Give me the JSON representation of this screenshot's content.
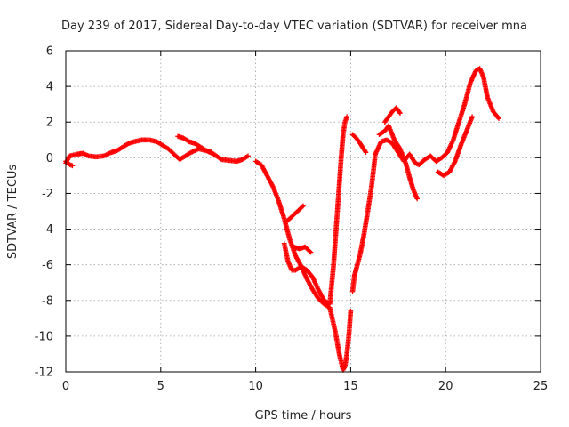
{
  "chart_data": {
    "type": "scatter",
    "title": "Day 239 of 2017, Sidereal Day-to-day VTEC variation (SDTVAR) for receiver mna",
    "xlabel": "GPS time / hours",
    "ylabel": "SDTVAR / TECUs",
    "xlim": [
      0,
      25
    ],
    "ylim": [
      -12,
      6
    ],
    "xticks": [
      0,
      5,
      10,
      15,
      20,
      25
    ],
    "yticks": [
      -12,
      -10,
      -8,
      -6,
      -4,
      -2,
      0,
      2,
      4,
      6
    ],
    "grid": true,
    "marker": "plus",
    "color": "#ff0000",
    "series": [
      {
        "x": [
          0.0,
          0.2,
          0.4,
          0.6,
          0.9,
          1.2,
          1.6,
          2.0,
          2.4,
          2.7,
          3.0,
          3.3,
          3.6,
          4.0,
          4.4,
          4.8,
          5.1,
          5.4,
          5.7,
          6.0,
          6.3,
          6.6,
          7.0,
          7.4,
          7.8,
          8.2,
          8.6,
          9.0,
          9.3,
          9.6
        ],
        "y": [
          -0.3,
          0.1,
          0.15,
          0.2,
          0.25,
          0.1,
          0.05,
          0.1,
          0.3,
          0.4,
          0.6,
          0.8,
          0.9,
          1.0,
          1.0,
          0.9,
          0.7,
          0.5,
          0.2,
          -0.1,
          0.1,
          0.3,
          0.5,
          0.4,
          0.2,
          -0.1,
          -0.15,
          -0.2,
          -0.1,
          0.1
        ]
      },
      {
        "x": [
          5.9,
          6.2,
          6.5,
          6.8,
          7.1,
          7.4,
          7.7
        ],
        "y": [
          1.2,
          1.1,
          0.9,
          0.8,
          0.6,
          0.4,
          0.3
        ]
      },
      {
        "x": [
          0.0,
          0.15,
          0.35
        ],
        "y": [
          -0.2,
          -0.35,
          -0.45
        ]
      },
      {
        "x": [
          10.0,
          10.3,
          10.6,
          10.9,
          11.2,
          11.5,
          11.8,
          12.1,
          12.4,
          12.7,
          13.0,
          13.3,
          13.6,
          13.9,
          14.2,
          14.4,
          14.6,
          14.7,
          14.8,
          14.9,
          15.0
        ],
        "y": [
          -0.2,
          -0.4,
          -1.0,
          -1.6,
          -2.4,
          -3.4,
          -4.6,
          -5.5,
          -6.1,
          -6.8,
          -7.4,
          -7.9,
          -8.2,
          -8.4,
          -9.8,
          -11.0,
          -11.9,
          -11.7,
          -11.0,
          -10.0,
          -8.6
        ]
      },
      {
        "x": [
          15.1,
          15.2,
          15.3,
          15.5,
          15.7,
          15.9,
          16.1,
          16.3,
          16.6,
          16.9,
          17.2,
          17.5,
          17.8,
          18.1,
          18.4,
          18.6,
          18.9,
          19.2,
          19.5,
          19.8,
          20.1,
          20.4,
          20.7,
          21.0,
          21.3,
          21.6,
          21.8,
          22.0,
          22.2,
          22.5,
          22.8
        ],
        "y": [
          -7.5,
          -6.6,
          -6.2,
          -5.4,
          -4.3,
          -3.0,
          -1.6,
          0.2,
          0.9,
          1.0,
          0.8,
          0.3,
          -0.2,
          0.2,
          -0.3,
          -0.4,
          -0.1,
          0.1,
          -0.2,
          0.0,
          0.3,
          1.0,
          2.0,
          3.0,
          4.2,
          4.9,
          5.0,
          4.5,
          3.4,
          2.6,
          2.2
        ]
      },
      {
        "x": [
          11.5,
          11.7,
          11.9,
          12.1,
          12.4,
          12.7,
          13.0,
          13.3,
          13.6,
          13.9,
          14.1,
          14.3,
          14.5,
          14.6,
          14.7,
          14.8
        ],
        "y": [
          -4.8,
          -5.8,
          -6.3,
          -6.3,
          -6.1,
          -6.3,
          -6.7,
          -7.4,
          -8.0,
          -8.2,
          -6.0,
          -3.0,
          0.0,
          1.3,
          2.0,
          2.3
        ]
      },
      {
        "x": [
          11.6,
          11.9,
          12.2,
          12.5
        ],
        "y": [
          -3.6,
          -3.3,
          -3.0,
          -2.7
        ]
      },
      {
        "x": [
          12.0,
          12.3,
          12.6,
          12.9
        ],
        "y": [
          -5.0,
          -5.1,
          -5.0,
          -5.3
        ]
      },
      {
        "x": [
          15.1,
          15.3,
          15.5,
          15.8
        ],
        "y": [
          1.3,
          1.1,
          0.8,
          0.3
        ]
      },
      {
        "x": [
          16.5,
          16.8,
          17.0,
          17.3,
          17.6,
          17.9,
          18.1,
          18.3,
          18.5
        ],
        "y": [
          1.3,
          1.5,
          1.8,
          1.0,
          0.5,
          -0.3,
          -1.1,
          -1.8,
          -2.3
        ]
      },
      {
        "x": [
          16.8,
          17.0,
          17.2,
          17.4,
          17.6
        ],
        "y": [
          2.0,
          2.3,
          2.6,
          2.8,
          2.5
        ]
      },
      {
        "x": [
          19.6,
          19.9,
          20.2,
          20.5,
          20.8,
          21.1,
          21.4
        ],
        "y": [
          -0.8,
          -1.0,
          -0.8,
          -0.2,
          0.7,
          1.5,
          2.3
        ]
      }
    ]
  }
}
